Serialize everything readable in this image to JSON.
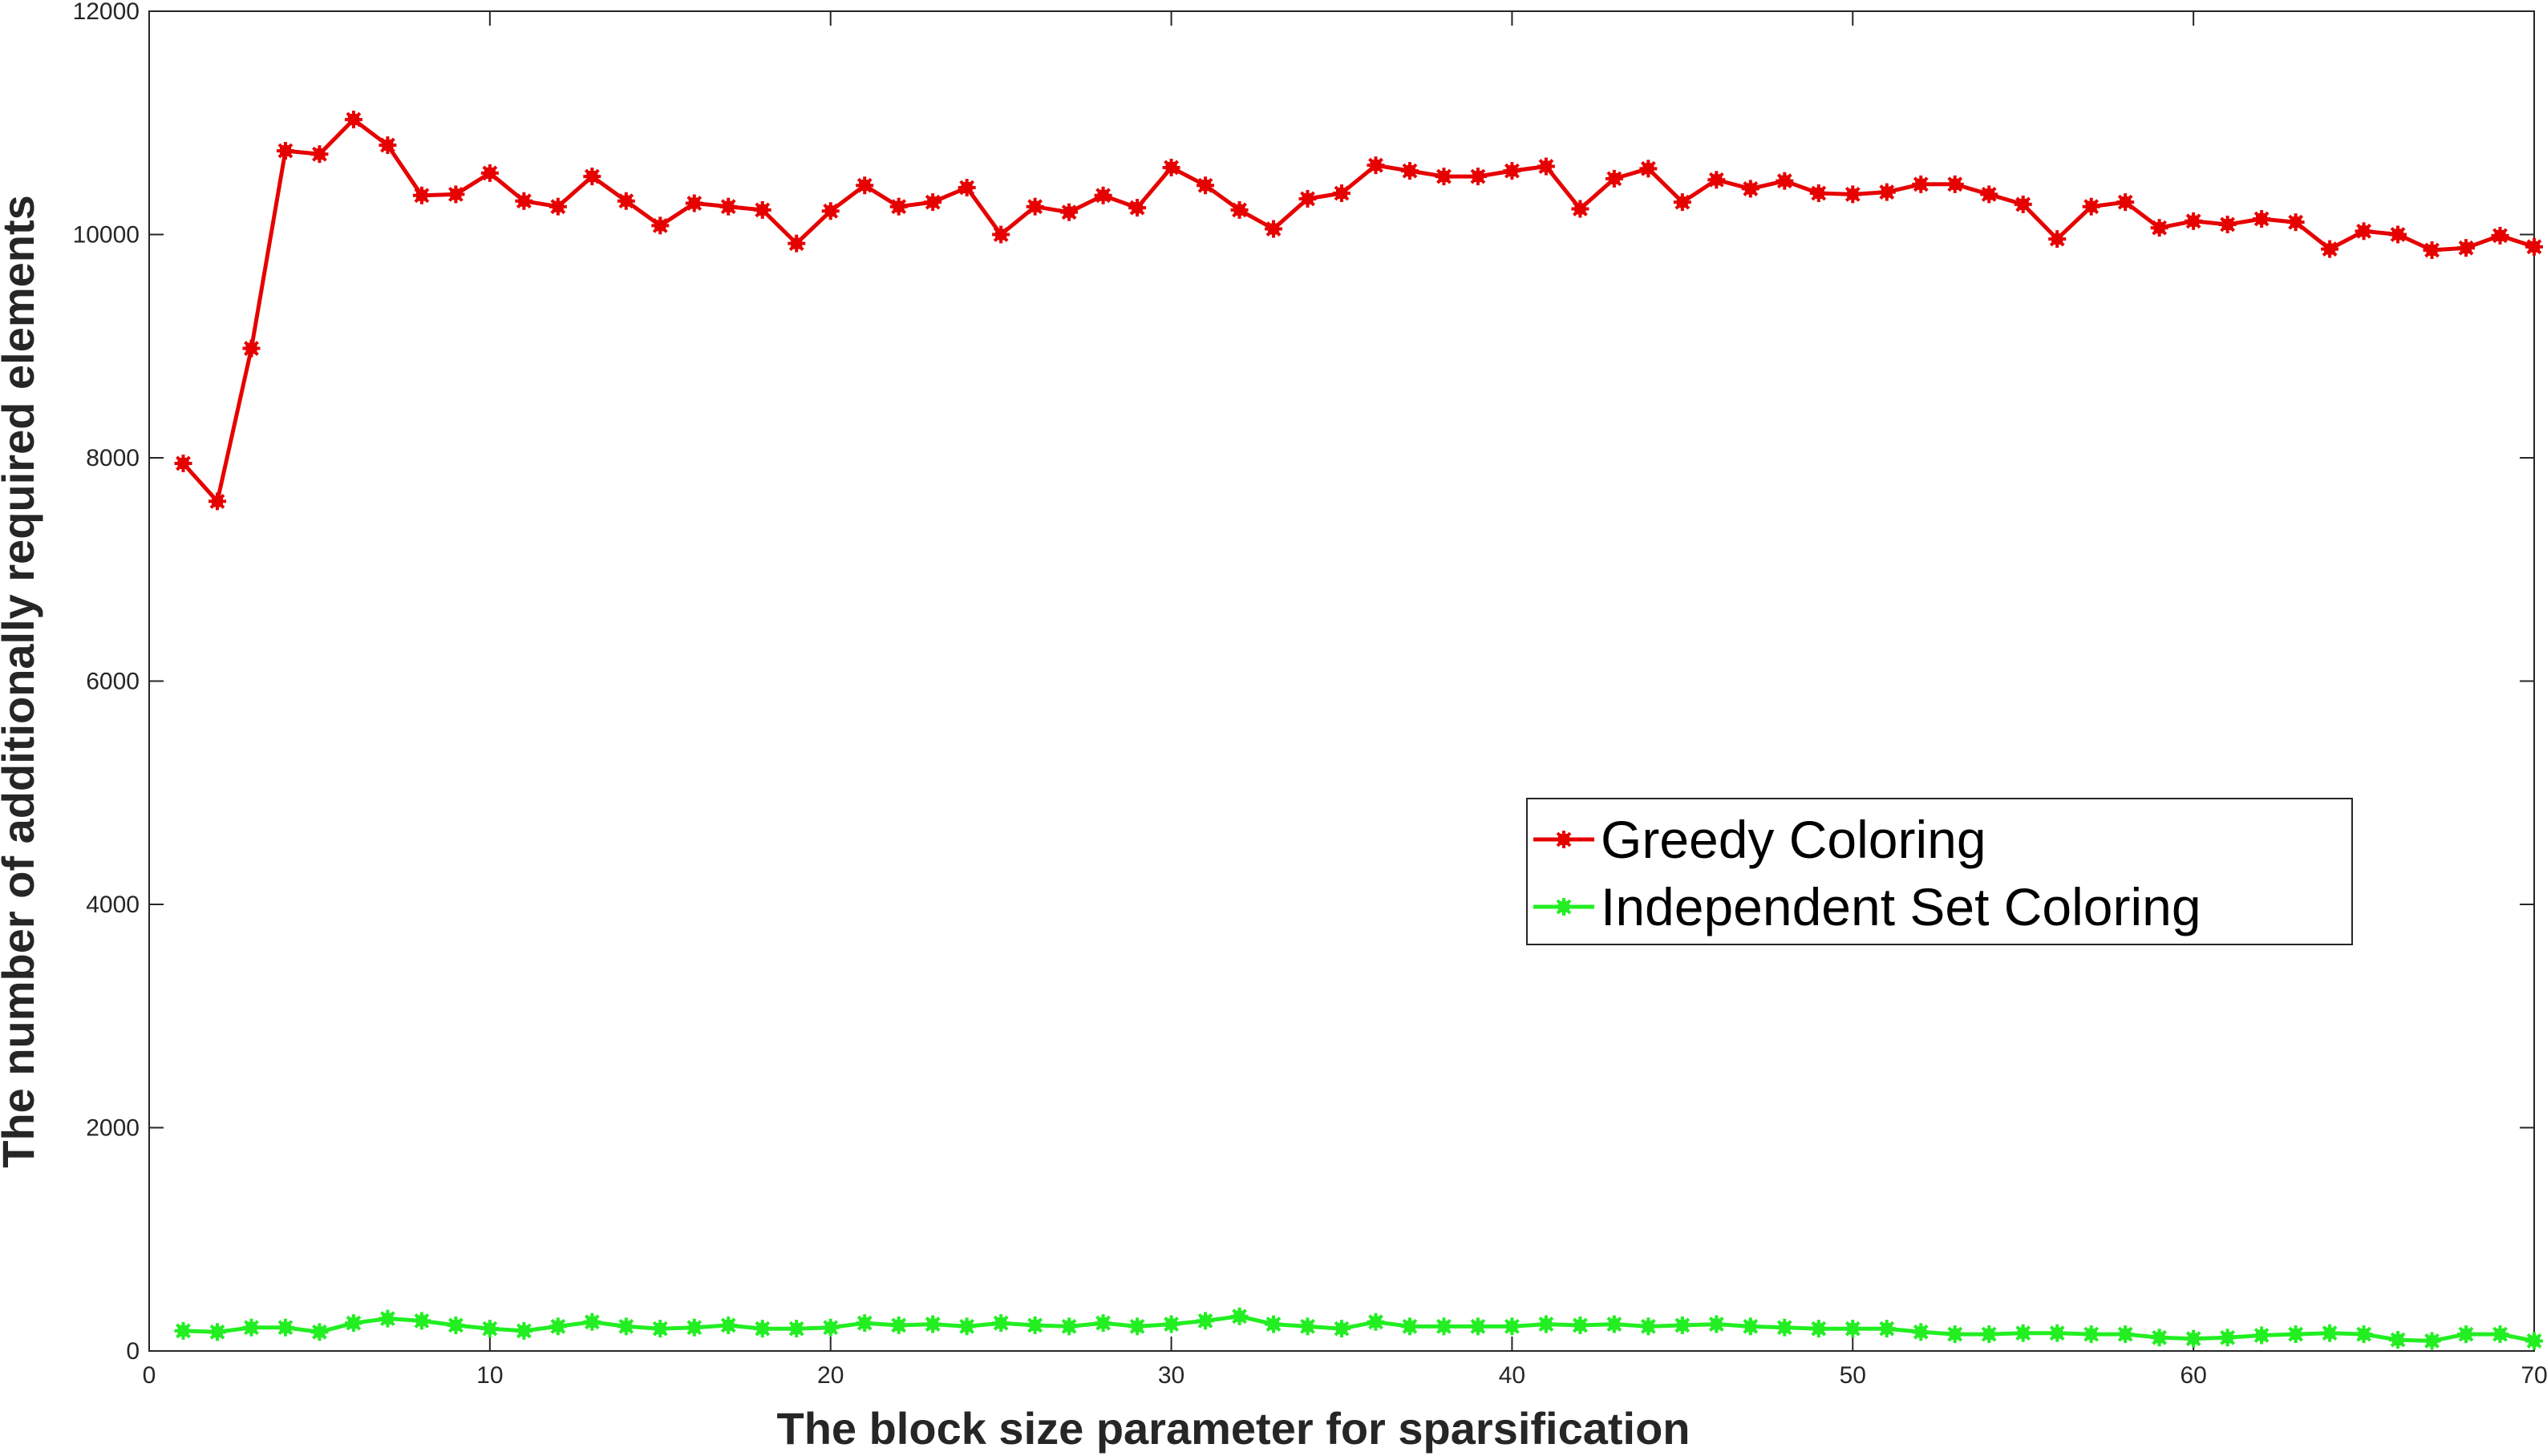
{
  "chart_data": {
    "type": "line",
    "title": "",
    "xlabel": "The block size parameter for sparsification",
    "ylabel": "The number of additionally required elements",
    "xlim": [
      0,
      70
    ],
    "ylim": [
      0,
      12000
    ],
    "xticks": [
      0,
      10,
      20,
      30,
      40,
      50,
      60,
      70
    ],
    "yticks": [
      0,
      2000,
      4000,
      6000,
      8000,
      10000,
      12000
    ],
    "grid": false,
    "legend_position": "center-right",
    "x": [
      1,
      2,
      3,
      4,
      5,
      6,
      7,
      8,
      9,
      10,
      11,
      12,
      13,
      14,
      15,
      16,
      17,
      18,
      19,
      20,
      21,
      22,
      23,
      24,
      25,
      26,
      27,
      28,
      29,
      30,
      31,
      32,
      33,
      34,
      35,
      36,
      37,
      38,
      39,
      40,
      41,
      42,
      43,
      44,
      45,
      46,
      47,
      48,
      49,
      50,
      51,
      52,
      53,
      54,
      55,
      56,
      57,
      58,
      59,
      60,
      61,
      62,
      63,
      64,
      65,
      66,
      67,
      68,
      69,
      70
    ],
    "series": [
      {
        "name": "Greedy Coloring",
        "color": "#e60000",
        "marker": "asterisk",
        "values": [
          7950,
          7610,
          8980,
          10750,
          10720,
          11030,
          10800,
          10350,
          10360,
          10550,
          10300,
          10250,
          10520,
          10300,
          10080,
          10280,
          10250,
          10220,
          9920,
          10210,
          10440,
          10250,
          10290,
          10420,
          10000,
          10250,
          10200,
          10350,
          10240,
          10600,
          10440,
          10220,
          10050,
          10320,
          10370,
          10620,
          10570,
          10520,
          10520,
          10570,
          10610,
          10230,
          10500,
          10590,
          10290,
          10490,
          10410,
          10480,
          10370,
          10360,
          10380,
          10450,
          10450,
          10360,
          10270,
          9960,
          10250,
          10290,
          10060,
          10120,
          10090,
          10140,
          10110,
          9870,
          10030,
          10000,
          9860,
          9880,
          9990,
          9890
        ]
      },
      {
        "name": "Independent Set Coloring",
        "color": "#22ee22",
        "marker": "asterisk",
        "values": [
          180,
          170,
          210,
          210,
          170,
          250,
          290,
          270,
          230,
          200,
          180,
          220,
          260,
          220,
          200,
          210,
          230,
          200,
          200,
          210,
          250,
          230,
          240,
          220,
          250,
          230,
          220,
          250,
          220,
          240,
          270,
          310,
          240,
          220,
          200,
          260,
          220,
          220,
          220,
          220,
          240,
          230,
          240,
          220,
          230,
          240,
          220,
          210,
          200,
          200,
          200,
          170,
          150,
          150,
          160,
          160,
          150,
          150,
          120,
          110,
          120,
          140,
          150,
          160,
          150,
          100,
          90,
          150,
          150,
          90
        ]
      }
    ]
  }
}
